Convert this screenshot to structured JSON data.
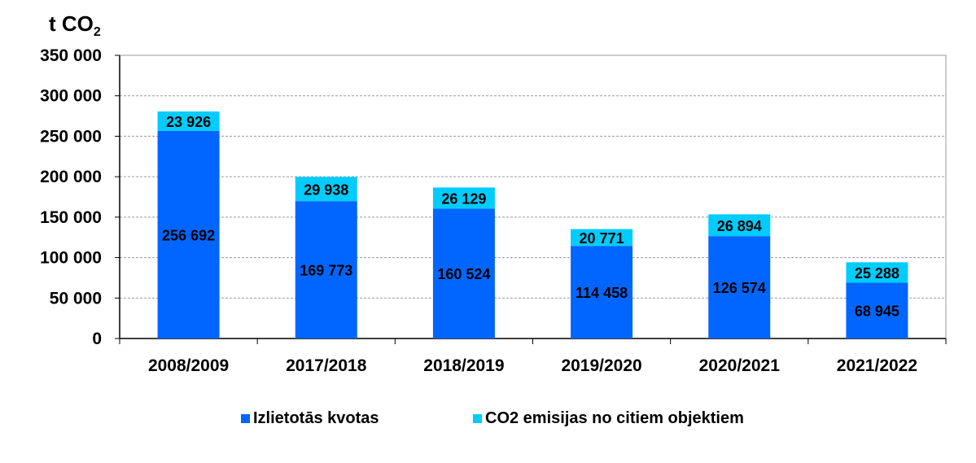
{
  "chart_data": {
    "type": "bar",
    "stacked": true,
    "unit_label": {
      "base": "t CO",
      "sub": "2"
    },
    "categories": [
      "2008/2009",
      "2017/2018",
      "2018/2019",
      "2019/2020",
      "2020/2021",
      "2021/2022"
    ],
    "series": [
      {
        "name": "Izlietotās kvotas",
        "values": [
          256692,
          169773,
          160524,
          114458,
          126574,
          68945
        ],
        "labels": [
          "256 692",
          "169 773",
          "160 524",
          "114 458",
          "126 574",
          "68 945"
        ],
        "color": "#0066FF"
      },
      {
        "name": "CO2 emisijas no citiem objektiem",
        "values": [
          23926,
          29938,
          26129,
          20771,
          26894,
          25288
        ],
        "labels": [
          "23 926",
          "29 938",
          "26 129",
          "20 771",
          "26 894",
          "25 288"
        ],
        "color": "#00CCFF"
      }
    ],
    "ylim": [
      0,
      350000
    ],
    "yticks": [
      0,
      50000,
      100000,
      150000,
      200000,
      250000,
      300000,
      350000
    ],
    "ytick_labels": [
      "0",
      "50 000",
      "100 000",
      "150 000",
      "200 000",
      "250 000",
      "300 000",
      "350 000"
    ],
    "grid": true,
    "legend_position": "bottom"
  }
}
